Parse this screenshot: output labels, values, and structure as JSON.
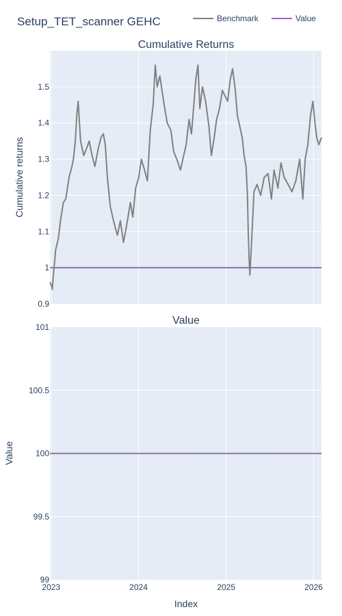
{
  "figure": {
    "title": "Setup_TET_scanner GEHC",
    "legend": [
      {
        "name": "Benchmark",
        "color": "#808080"
      },
      {
        "name": "Value",
        "color": "#9467bd"
      }
    ],
    "background": "#e5ecf6",
    "grid_color": "#ffffff",
    "text_color": "#2a3f5f"
  },
  "chart_data": [
    {
      "type": "line",
      "title": "Cumulative Returns",
      "ylabel": "Cumulative returns",
      "xlabel": "",
      "grid": true,
      "xlim": [
        "2022-12-27",
        "2026-02-03"
      ],
      "ylim": [
        0.9,
        1.6
      ],
      "yticks": [
        "0.9",
        "1",
        "1.1",
        "1.2",
        "1.3",
        "1.4",
        "1.5"
      ],
      "ytick_values": [
        0.9,
        1.0,
        1.1,
        1.2,
        1.3,
        1.4,
        1.5
      ],
      "xtick_dates": [
        "2023-01-01",
        "2024-01-01",
        "2025-01-01",
        "2026-01-01"
      ],
      "series": [
        {
          "name": "Benchmark",
          "color": "#808080",
          "x": [
            "2022-12-27",
            "2023-01-03",
            "2023-01-06",
            "2023-01-09",
            "2023-01-12",
            "2023-01-20",
            "2023-01-31",
            "2023-02-09",
            "2023-02-21",
            "2023-03-03",
            "2023-03-17",
            "2023-03-29",
            "2023-04-04",
            "2023-04-12",
            "2023-04-18",
            "2023-04-24",
            "2023-05-04",
            "2023-05-17",
            "2023-05-29",
            "2023-06-09",
            "2023-06-21",
            "2023-07-03",
            "2023-07-17",
            "2023-07-28",
            "2023-08-07",
            "2023-08-15",
            "2023-08-24",
            "2023-09-05",
            "2023-09-15",
            "2023-09-26",
            "2023-10-05",
            "2023-10-17",
            "2023-10-30",
            "2023-11-13",
            "2023-11-28",
            "2023-12-08",
            "2023-12-20",
            "2024-01-02",
            "2024-01-13",
            "2024-01-26",
            "2024-02-07",
            "2024-02-19",
            "2024-03-02",
            "2024-03-11",
            "2024-03-19",
            "2024-03-30",
            "2024-04-17",
            "2024-04-30",
            "2024-05-15",
            "2024-05-27",
            "2024-06-09",
            "2024-06-24",
            "2024-07-04",
            "2024-07-18",
            "2024-07-30",
            "2024-08-09",
            "2024-08-19",
            "2024-08-27",
            "2024-09-05",
            "2024-09-13",
            "2024-09-24",
            "2024-10-07",
            "2024-10-21",
            "2024-10-31",
            "2024-11-12",
            "2024-11-22",
            "2024-12-04",
            "2024-12-16",
            "2025-01-07",
            "2025-01-18",
            "2025-01-28",
            "2025-02-08",
            "2025-02-17",
            "2025-02-27",
            "2025-03-09",
            "2025-03-17",
            "2025-03-25",
            "2025-03-31",
            "2025-04-03",
            "2025-04-07",
            "2025-04-10",
            "2025-04-17",
            "2025-04-27",
            "2025-05-10",
            "2025-05-25",
            "2025-06-09",
            "2025-06-25",
            "2025-07-09",
            "2025-07-20",
            "2025-08-05",
            "2025-08-18",
            "2025-08-31",
            "2025-09-17",
            "2025-10-03",
            "2025-10-19",
            "2025-11-04",
            "2025-11-17",
            "2025-11-27",
            "2025-12-08",
            "2025-12-19",
            "2025-12-29",
            "2026-01-07",
            "2026-01-14",
            "2026-01-23",
            "2026-02-03"
          ],
          "values": [
            0.96,
            0.95,
            0.94,
            0.97,
            0.99,
            1.05,
            1.08,
            1.13,
            1.18,
            1.19,
            1.25,
            1.28,
            1.3,
            1.35,
            1.42,
            1.46,
            1.35,
            1.31,
            1.33,
            1.35,
            1.31,
            1.28,
            1.33,
            1.36,
            1.37,
            1.34,
            1.25,
            1.17,
            1.14,
            1.11,
            1.09,
            1.13,
            1.07,
            1.12,
            1.18,
            1.14,
            1.22,
            1.25,
            1.3,
            1.27,
            1.24,
            1.38,
            1.45,
            1.56,
            1.5,
            1.53,
            1.45,
            1.4,
            1.38,
            1.32,
            1.3,
            1.27,
            1.3,
            1.34,
            1.41,
            1.37,
            1.45,
            1.52,
            1.56,
            1.44,
            1.5,
            1.46,
            1.39,
            1.31,
            1.36,
            1.41,
            1.44,
            1.49,
            1.46,
            1.52,
            1.55,
            1.49,
            1.42,
            1.39,
            1.36,
            1.31,
            1.28,
            1.2,
            1.1,
            1.02,
            0.98,
            1.07,
            1.21,
            1.23,
            1.2,
            1.25,
            1.26,
            1.19,
            1.27,
            1.22,
            1.29,
            1.25,
            1.23,
            1.21,
            1.24,
            1.3,
            1.19,
            1.3,
            1.34,
            1.42,
            1.46,
            1.4,
            1.36,
            1.34,
            1.36
          ]
        },
        {
          "name": "Value",
          "color": "#9467bd",
          "dashed_overlay_color": "#808080",
          "x": [
            "2022-12-27",
            "2023-01-03",
            "2026-02-03"
          ],
          "values": [
            1.0,
            1.0,
            1.0
          ]
        }
      ]
    },
    {
      "type": "line",
      "title": "Value",
      "ylabel": "Value",
      "xlabel": "Index",
      "grid": true,
      "xlim": [
        "2022-12-27",
        "2026-02-03"
      ],
      "ylim": [
        99,
        101
      ],
      "yticks": [
        "99",
        "99.5",
        "100",
        "100.5",
        "101"
      ],
      "ytick_values": [
        99,
        99.5,
        100,
        100.5,
        101
      ],
      "xticks": [
        "2023",
        "2024",
        "2025",
        "2026"
      ],
      "xtick_dates": [
        "2023-01-01",
        "2024-01-01",
        "2025-01-01",
        "2026-01-01"
      ],
      "series": [
        {
          "name": "Value",
          "color": "#9467bd",
          "dashed_overlay_color": "#808080",
          "x": [
            "2022-12-27",
            "2026-02-03"
          ],
          "values": [
            100,
            100
          ]
        }
      ]
    }
  ]
}
